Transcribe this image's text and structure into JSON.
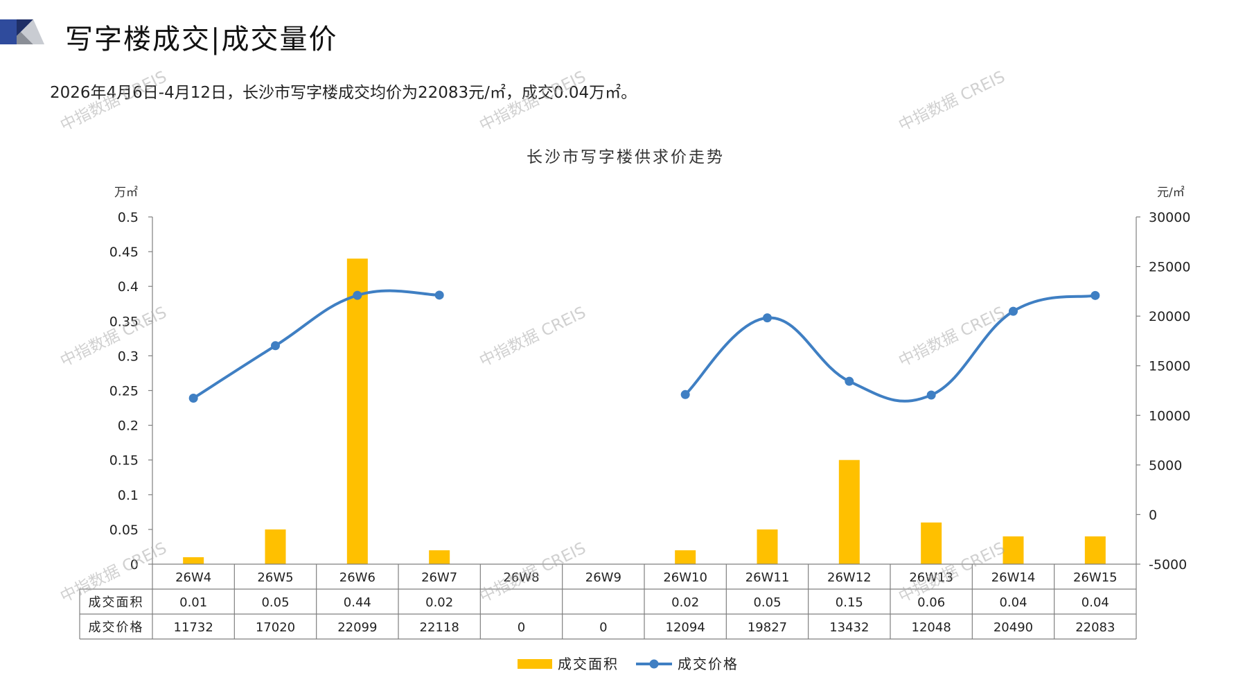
{
  "header": {
    "title": "写字楼成交|成交量价"
  },
  "summary": "2026年4月6日-4月12日，长沙市写字楼成交均价为22083元/㎡，成交0.04万㎡。",
  "watermark": "中指数据 CREIS",
  "chart_data": {
    "type": "bar",
    "title": "长沙市写字楼供求价走势",
    "left_axis_unit": "万㎡",
    "right_axis_unit": "元/㎡",
    "y_left": {
      "min": 0,
      "max": 0.5,
      "ticks": [
        "0",
        "0.05",
        "0.1",
        "0.15",
        "0.2",
        "0.25",
        "0.3",
        "0.35",
        "0.4",
        "0.45",
        "0.5"
      ]
    },
    "y_right": {
      "min": -5000,
      "max": 30000,
      "ticks": [
        "-5000",
        "0",
        "5000",
        "10000",
        "15000",
        "20000",
        "25000",
        "30000"
      ]
    },
    "categories": [
      "26W4",
      "26W5",
      "26W6",
      "26W7",
      "26W8",
      "26W9",
      "26W10",
      "26W11",
      "26W12",
      "26W13",
      "26W14",
      "26W15"
    ],
    "series": [
      {
        "name": "成交面积",
        "type": "bar",
        "axis": "left",
        "color": "#FFC000",
        "values": [
          0.01,
          0.05,
          0.44,
          0.02,
          null,
          null,
          0.02,
          0.05,
          0.15,
          0.06,
          0.04,
          0.04
        ],
        "labels": [
          "0.01",
          "0.05",
          "0.44",
          "0.02",
          "",
          "",
          "0.02",
          "0.05",
          "0.15",
          "0.06",
          "0.04",
          "0.04"
        ]
      },
      {
        "name": "成交价格",
        "type": "line",
        "axis": "right",
        "color": "#3F7FC3",
        "values": [
          11732,
          17020,
          22099,
          22118,
          0,
          0,
          12094,
          19827,
          13432,
          12048,
          20490,
          22083
        ],
        "labels": [
          "11732",
          "17020",
          "22099",
          "22118",
          "0",
          "0",
          "12094",
          "19827",
          "13432",
          "12048",
          "20490",
          "22083"
        ]
      }
    ],
    "legend_position": "bottom",
    "grid": false
  }
}
